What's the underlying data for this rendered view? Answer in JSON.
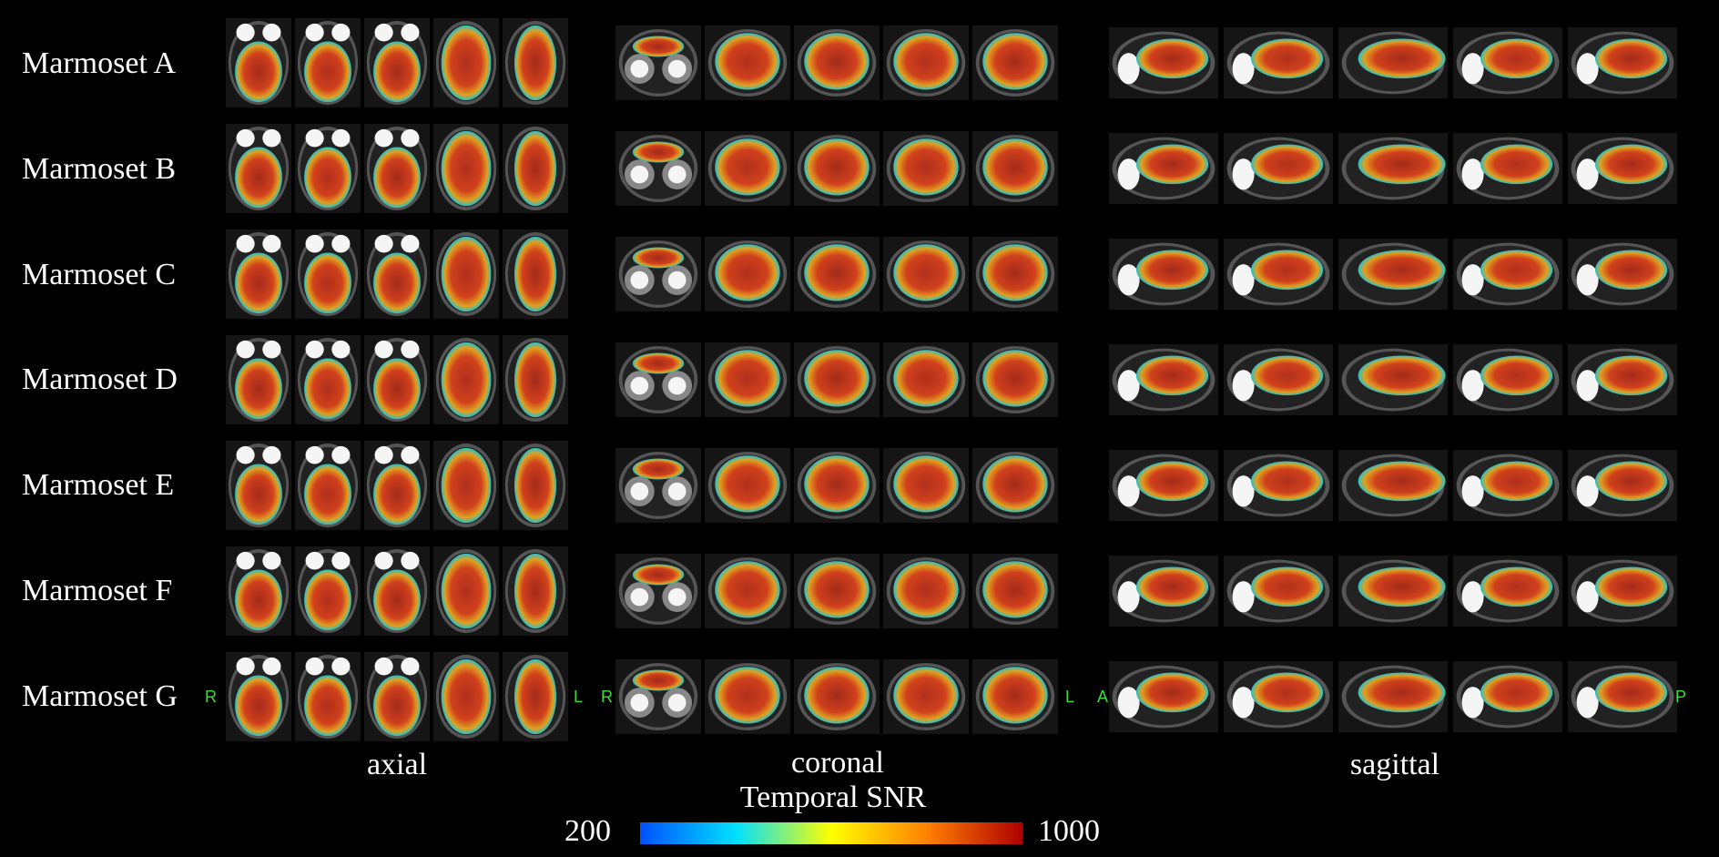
{
  "rows": [
    "Marmoset A",
    "Marmoset B",
    "Marmoset C",
    "Marmoset D",
    "Marmoset E",
    "Marmoset F",
    "Marmoset G"
  ],
  "orientation": {
    "axial_left": "R",
    "axial_right": "L",
    "coronal_left": "R",
    "coronal_right": "L",
    "sagittal_left": "A",
    "sagittal_right": "P"
  },
  "panels": {
    "axial": "axial",
    "coronal": "coronal",
    "sagittal": "sagittal"
  },
  "colorbar": {
    "title": "Temporal SNR",
    "min": "200",
    "max": "1000",
    "colors": [
      "#0050ff",
      "#00e0ff",
      "#ffff00",
      "#ff8000",
      "#b00000"
    ]
  }
}
